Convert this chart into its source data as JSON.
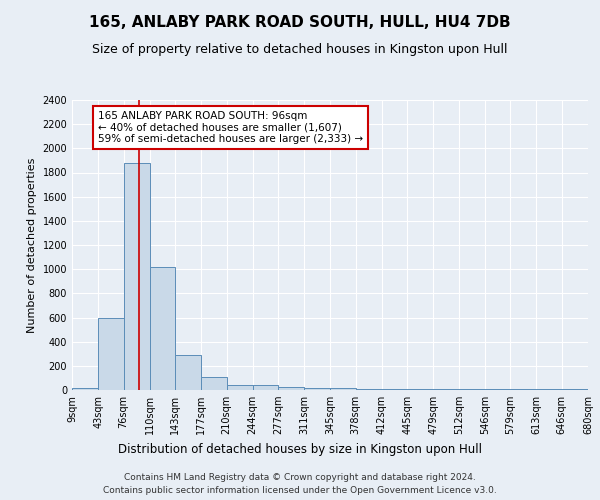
{
  "title": "165, ANLABY PARK ROAD SOUTH, HULL, HU4 7DB",
  "subtitle": "Size of property relative to detached houses in Kingston upon Hull",
  "xlabel": "Distribution of detached houses by size in Kingston upon Hull",
  "ylabel": "Number of detached properties",
  "footer_line1": "Contains HM Land Registry data © Crown copyright and database right 2024.",
  "footer_line2": "Contains public sector information licensed under the Open Government Licence v3.0.",
  "bin_edges": [
    9,
    43,
    76,
    110,
    143,
    177,
    210,
    244,
    277,
    311,
    345,
    378,
    412,
    445,
    479,
    512,
    546,
    579,
    613,
    646,
    680
  ],
  "bar_heights": [
    20,
    600,
    1880,
    1020,
    290,
    110,
    45,
    40,
    25,
    20,
    20,
    5,
    5,
    5,
    5,
    5,
    5,
    5,
    5,
    5
  ],
  "bar_color": "#c9d9e8",
  "bar_edge_color": "#5b8db8",
  "vline_x": 96,
  "vline_color": "#cc0000",
  "annotation_text": "165 ANLABY PARK ROAD SOUTH: 96sqm\n← 40% of detached houses are smaller (1,607)\n59% of semi-detached houses are larger (2,333) →",
  "annotation_box_facecolor": "#ffffff",
  "annotation_box_edgecolor": "#cc0000",
  "ylim": [
    0,
    2400
  ],
  "yticks": [
    0,
    200,
    400,
    600,
    800,
    1000,
    1200,
    1400,
    1600,
    1800,
    2000,
    2200,
    2400
  ],
  "background_color": "#e8eef5",
  "grid_color": "#ffffff",
  "title_fontsize": 11,
  "subtitle_fontsize": 9,
  "ylabel_fontsize": 8,
  "xlabel_fontsize": 8.5,
  "tick_fontsize": 7,
  "annot_fontsize": 7.5,
  "footer_fontsize": 6.5
}
